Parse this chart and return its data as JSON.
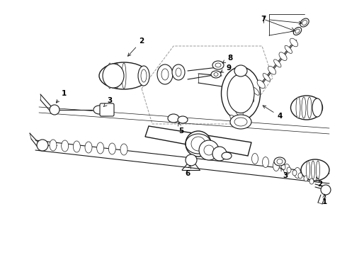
{
  "bg_color": "#ffffff",
  "line_color": "#1a1a1a",
  "label_color": "#000000",
  "figsize": [
    4.9,
    3.6
  ],
  "dpi": 100,
  "parts": {
    "label_fontsize": 7.5,
    "arrow_lw": 0.6
  }
}
